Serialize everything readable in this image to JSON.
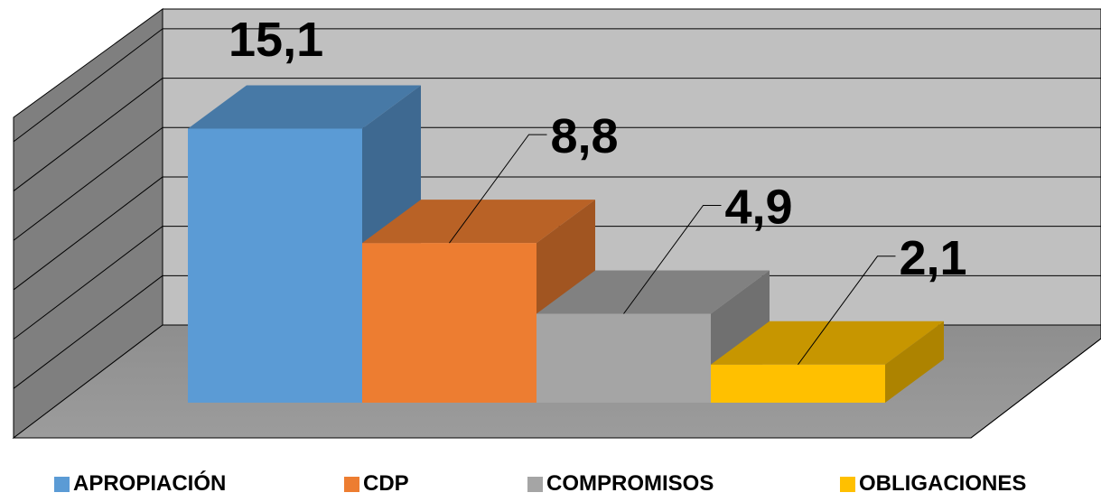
{
  "chart_data": {
    "type": "bar",
    "title": "",
    "xlabel": "",
    "ylabel": "",
    "categories": [
      "APROPIACIÓN",
      "CDP",
      "COMPROMISOS",
      "OBLIGACIONES"
    ],
    "values": [
      15.1,
      8.8,
      4.9,
      2.1
    ],
    "value_labels": [
      "15,1",
      "8,8",
      "4,9",
      "2,1"
    ],
    "colors": [
      "#5b9bd5",
      "#ed7d31",
      "#a5a5a5",
      "#ffc000"
    ],
    "ylim": [
      0,
      16
    ],
    "grid": true,
    "three_d": true,
    "legend_position": "bottom"
  }
}
